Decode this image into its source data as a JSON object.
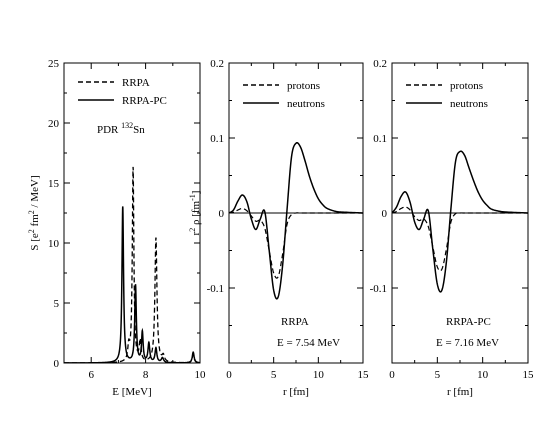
{
  "chart_data": [
    {
      "type": "line",
      "xlabel": "E [MeV]",
      "ylabel": "S [e2 fm2 / MeV]",
      "xlim": [
        5,
        10
      ],
      "ylim": [
        0,
        25
      ],
      "xticks": [
        6,
        8,
        10
      ],
      "yticks": [
        0,
        5,
        10,
        15,
        20,
        25
      ],
      "annotation": "PDR 132Sn",
      "legend_position": "top-left",
      "series": [
        {
          "name": "RRPA",
          "style": "dashed",
          "peaks": [
            {
              "E": 7.38,
              "S": 1.2,
              "width": 0.04
            },
            {
              "E": 7.54,
              "S": 16.2,
              "width": 0.035
            },
            {
              "E": 7.8,
              "S": 1.7,
              "width": 0.04
            },
            {
              "E": 8.38,
              "S": 10.4,
              "width": 0.045
            },
            {
              "E": 8.65,
              "S": 0.5,
              "width": 0.05
            },
            {
              "E": 9.75,
              "S": 0.7,
              "width": 0.04
            }
          ]
        },
        {
          "name": "RRPA-PC",
          "style": "solid",
          "peaks": [
            {
              "E": 7.16,
              "S": 13.0,
              "width": 0.035
            },
            {
              "E": 7.63,
              "S": 6.4,
              "width": 0.035
            },
            {
              "E": 7.88,
              "S": 2.5,
              "width": 0.035
            },
            {
              "E": 8.12,
              "S": 1.6,
              "width": 0.04
            },
            {
              "E": 8.38,
              "S": 1.2,
              "width": 0.04
            },
            {
              "E": 8.62,
              "S": 0.4,
              "width": 0.05
            },
            {
              "E": 9.75,
              "S": 0.9,
              "width": 0.04
            }
          ]
        }
      ]
    },
    {
      "type": "line",
      "xlabel": "r [fm]",
      "ylabel": "r2 ρ [fm-1]",
      "xlim": [
        0,
        15
      ],
      "ylim": [
        -0.2,
        0.2
      ],
      "xticks": [
        0,
        5,
        10,
        15
      ],
      "yticks": [
        -0.2,
        -0.1,
        0,
        0.1,
        0.2
      ],
      "tick_labels_y": [
        "",
        "-0.1",
        "0",
        "0.1",
        "0.2"
      ],
      "annotation": [
        "RRPA",
        "E = 7.54 MeV"
      ],
      "legend_position": "top-left",
      "series": [
        {
          "name": "protons",
          "style": "dashed",
          "x": [
            0,
            0.5,
            1,
            1.5,
            2,
            2.5,
            3,
            3.5,
            4,
            4.5,
            5,
            5.5,
            6,
            6.5,
            7,
            7.5,
            8,
            9,
            10,
            12,
            15
          ],
          "y": [
            0,
            0.001,
            0.004,
            0.006,
            0.003,
            -0.004,
            -0.011,
            -0.01,
            -0.02,
            -0.05,
            -0.08,
            -0.085,
            -0.055,
            -0.015,
            -0.002,
            0,
            0,
            0,
            0,
            0,
            0
          ]
        },
        {
          "name": "neutrons",
          "style": "solid",
          "x": [
            0,
            0.5,
            1,
            1.5,
            2,
            2.5,
            3,
            3.5,
            4,
            4.5,
            5,
            5.5,
            6,
            6.5,
            7,
            7.5,
            8,
            8.5,
            9,
            9.5,
            10,
            10.5,
            11,
            12,
            13,
            15
          ],
          "y": [
            0,
            0.004,
            0.016,
            0.024,
            0.015,
            -0.008,
            -0.022,
            -0.008,
            0.002,
            -0.05,
            -0.103,
            -0.112,
            -0.07,
            0.005,
            0.075,
            0.093,
            0.088,
            0.07,
            0.049,
            0.032,
            0.019,
            0.011,
            0.006,
            0.002,
            0.001,
            0
          ]
        }
      ]
    },
    {
      "type": "line",
      "xlabel": "r [fm]",
      "ylabel": "",
      "xlim": [
        0,
        15
      ],
      "ylim": [
        -0.2,
        0.2
      ],
      "xticks": [
        0,
        5,
        10,
        15
      ],
      "yticks": [
        -0.2,
        -0.1,
        0,
        0.1,
        0.2
      ],
      "tick_labels_y": [
        "",
        "-0.1",
        "0",
        "0.1",
        "0.2"
      ],
      "annotation": [
        "RRPA-PC",
        "E = 7.16 MeV"
      ],
      "legend_position": "top-left",
      "series": [
        {
          "name": "protons",
          "style": "dashed",
          "x": [
            0,
            0.5,
            1,
            1.5,
            2,
            2.5,
            3,
            3.5,
            4,
            4.5,
            5,
            5.5,
            6,
            6.5,
            7,
            7.5,
            8,
            9,
            10,
            12,
            15
          ],
          "y": [
            0,
            0.002,
            0.006,
            0.008,
            0.004,
            -0.005,
            -0.01,
            -0.008,
            -0.018,
            -0.045,
            -0.072,
            -0.075,
            -0.048,
            -0.012,
            -0.001,
            0,
            0,
            0,
            0,
            0,
            0
          ]
        },
        {
          "name": "neutrons",
          "style": "solid",
          "x": [
            0,
            0.5,
            1,
            1.5,
            2,
            2.5,
            3,
            3.5,
            4,
            4.5,
            5,
            5.5,
            6,
            6.5,
            7,
            7.5,
            8,
            8.5,
            9,
            9.5,
            10,
            10.5,
            11,
            12,
            13,
            15
          ],
          "y": [
            0,
            0.008,
            0.022,
            0.028,
            0.014,
            -0.012,
            -0.022,
            -0.008,
            0.003,
            -0.048,
            -0.095,
            -0.103,
            -0.065,
            0.006,
            0.068,
            0.082,
            0.077,
            0.06,
            0.043,
            0.028,
            0.017,
            0.01,
            0.005,
            0.002,
            0.001,
            0
          ]
        }
      ]
    }
  ]
}
